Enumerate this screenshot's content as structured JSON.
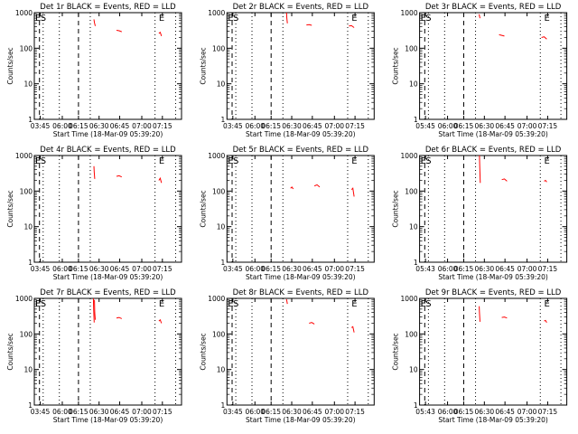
{
  "colors": {
    "events": "#000000",
    "lld": "#ff0000",
    "axis": "#000000"
  },
  "chart_data": [
    {
      "type": "line",
      "title": "Det 1r BLACK = Events, RED = LLD",
      "xlabel": "Start Time (18-Mar-09 05:39:20)",
      "ylabel": "Counts/sec",
      "y_scale": "log",
      "ylim": [
        1,
        1000
      ],
      "yticks": [
        "1",
        "10",
        "100",
        "1000"
      ],
      "xticks": [
        "03:45",
        "06:00",
        "06:15",
        "06:30",
        "06:45",
        "07:00",
        "07:15"
      ],
      "markers": [
        "E",
        "S",
        "E"
      ],
      "lld_segments": [
        {
          "x": [
            0.225,
            0.227,
            0.23
          ],
          "y": [
            650,
            520,
            420
          ]
        },
        {
          "x": [
            0.31,
            0.32,
            0.33
          ],
          "y": [
            320,
            310,
            290
          ]
        },
        {
          "x": [
            0.47,
            0.475,
            0.48
          ],
          "y": [
            260,
            280,
            220
          ]
        }
      ],
      "events_segments": []
    },
    {
      "type": "line",
      "title": "Det 2r BLACK = Events, RED = LLD",
      "xlabel": "Start Time (18-Mar-09 05:39:20)",
      "ylabel": "Counts/sec",
      "y_scale": "log",
      "ylim": [
        1,
        1000
      ],
      "yticks": [
        "1",
        "10",
        "100",
        "1000"
      ],
      "xticks": [
        "03:45",
        "06:00",
        "06:15",
        "06:30",
        "06:45",
        "07:00",
        "07:15"
      ],
      "markers": [
        "E",
        "S",
        "E"
      ],
      "lld_segments": [
        {
          "x": [
            0.225,
            0.226,
            0.228
          ],
          "y": [
            1000,
            700,
            500
          ]
        },
        {
          "x": [
            0.3,
            0.31,
            0.32
          ],
          "y": [
            450,
            460,
            440
          ]
        },
        {
          "x": [
            0.46,
            0.47,
            0.48
          ],
          "y": [
            420,
            430,
            380
          ]
        }
      ],
      "events_segments": []
    },
    {
      "type": "line",
      "title": "Det 3r BLACK = Events, RED = LLD",
      "xlabel": "Start Time (18-Mar-09 05:39:20)",
      "ylabel": "Counts/sec",
      "y_scale": "log",
      "ylim": [
        1,
        1000
      ],
      "yticks": [
        "1",
        "10",
        "100",
        "1000"
      ],
      "xticks": [
        "05:45",
        "06:00",
        "06:15",
        "06:30",
        "06:45",
        "07:00",
        "07:15"
      ],
      "markers": [
        "E",
        "S",
        "E"
      ],
      "lld_segments": [
        {
          "x": [
            0.225,
            0.226,
            0.228
          ],
          "y": [
            900,
            800,
            700
          ]
        },
        {
          "x": [
            0.3,
            0.31,
            0.32
          ],
          "y": [
            240,
            230,
            220
          ]
        },
        {
          "x": [
            0.46,
            0.47,
            0.48
          ],
          "y": [
            200,
            210,
            180
          ]
        }
      ],
      "events_segments": []
    },
    {
      "type": "line",
      "title": "Det 4r BLACK = Events, RED = LLD",
      "xlabel": "Start Time (18-Mar-09 05:39:20)",
      "ylabel": "Counts/sec",
      "y_scale": "log",
      "ylim": [
        1,
        1000
      ],
      "yticks": [
        "1",
        "10",
        "100",
        "1000"
      ],
      "xticks": [
        "03:45",
        "06:00",
        "06:15",
        "06:30",
        "06:45",
        "07:00",
        "07:15"
      ],
      "markers": [
        "E",
        "S",
        "E"
      ],
      "lld_segments": [
        {
          "x": [
            0.225,
            0.226,
            0.228
          ],
          "y": [
            500,
            350,
            220
          ]
        },
        {
          "x": [
            0.31,
            0.32,
            0.33
          ],
          "y": [
            260,
            270,
            250
          ]
        },
        {
          "x": [
            0.47,
            0.475,
            0.48
          ],
          "y": [
            200,
            230,
            170
          ]
        }
      ],
      "events_segments": []
    },
    {
      "type": "line",
      "title": "Det 5r BLACK = Events, RED = LLD",
      "xlabel": "Start Time (18-Mar-09 05:39:20)",
      "ylabel": "Counts/sec",
      "y_scale": "log",
      "ylim": [
        1,
        1000
      ],
      "yticks": [
        "1",
        "10",
        "100",
        "1000"
      ],
      "xticks": [
        "03:45",
        "06:00",
        "06:15",
        "06:30",
        "06:45",
        "07:00",
        "07:15"
      ],
      "markers": [
        "E",
        "S",
        "E"
      ],
      "lld_segments": [
        {
          "x": [
            0.24,
            0.245,
            0.25
          ],
          "y": [
            120,
            130,
            115
          ]
        },
        {
          "x": [
            0.33,
            0.34,
            0.35
          ],
          "y": [
            140,
            150,
            130
          ]
        },
        {
          "x": [
            0.47,
            0.475,
            0.48
          ],
          "y": [
            110,
            120,
            70
          ]
        }
      ],
      "events_segments": []
    },
    {
      "type": "line",
      "title": "Det 6r BLACK = Events, RED = LLD",
      "xlabel": "Start Time (18-Mar-09 05:39:20)",
      "ylabel": "Counts/sec",
      "y_scale": "log",
      "ylim": [
        1,
        1000
      ],
      "yticks": [
        "1",
        "10",
        "100",
        "1000"
      ],
      "xticks": [
        "05:43",
        "06:00",
        "06:15",
        "06:30",
        "06:45",
        "07:00",
        "07:15"
      ],
      "markers": [
        "E",
        "S",
        "E"
      ],
      "lld_segments": [
        {
          "x": [
            0.226,
            0.227,
            0.229
          ],
          "y": [
            1000,
            500,
            170
          ]
        },
        {
          "x": [
            0.31,
            0.32,
            0.33
          ],
          "y": [
            210,
            220,
            190
          ]
        },
        {
          "x": [
            0.47,
            0.475,
            0.48
          ],
          "y": [
            190,
            200,
            180
          ]
        }
      ],
      "events_segments": []
    },
    {
      "type": "line",
      "title": "Det 7r BLACK = Events, RED = LLD",
      "xlabel": "Start Time (18-Mar-09 05:39:20)",
      "ylabel": "Counts/sec",
      "y_scale": "log",
      "ylim": [
        1,
        1000
      ],
      "yticks": [
        "1",
        "10",
        "100",
        "1000"
      ],
      "xticks": [
        "03:45",
        "06:00",
        "06:15",
        "06:30",
        "06:45",
        "07:00",
        "07:15"
      ],
      "markers": [
        "E",
        "S",
        "E"
      ],
      "lld_segments": [
        {
          "x": [
            0.223,
            0.224,
            0.226
          ],
          "y": [
            1000,
            500,
            210
          ]
        },
        {
          "x": [
            0.227,
            0.228,
            0.23
          ],
          "y": [
            900,
            400,
            250
          ]
        },
        {
          "x": [
            0.31,
            0.32,
            0.33
          ],
          "y": [
            280,
            290,
            270
          ]
        },
        {
          "x": [
            0.47,
            0.475,
            0.48
          ],
          "y": [
            230,
            250,
            200
          ]
        }
      ],
      "events_segments": []
    },
    {
      "type": "line",
      "title": "Det 8r BLACK = Events, RED = LLD",
      "xlabel": "Start Time (18-Mar-09 05:39:20)",
      "ylabel": "Counts/sec",
      "y_scale": "log",
      "ylim": [
        1,
        1000
      ],
      "yticks": [
        "1",
        "10",
        "100",
        "1000"
      ],
      "xticks": [
        "03:45",
        "06:00",
        "06:15",
        "06:30",
        "06:45",
        "07:00",
        "07:15"
      ],
      "markers": [
        "E",
        "S",
        "E"
      ],
      "lld_segments": [
        {
          "x": [
            0.225,
            0.226,
            0.228
          ],
          "y": [
            950,
            850,
            700
          ]
        },
        {
          "x": [
            0.31,
            0.32,
            0.33
          ],
          "y": [
            200,
            210,
            190
          ]
        },
        {
          "x": [
            0.47,
            0.475,
            0.48
          ],
          "y": [
            150,
            160,
            110
          ]
        }
      ],
      "events_segments": []
    },
    {
      "type": "line",
      "title": "Det 9r BLACK = Events, RED = LLD",
      "xlabel": "Start Time (18-Mar-09 05:39:20)",
      "ylabel": "Counts/sec",
      "y_scale": "log",
      "ylim": [
        1,
        1000
      ],
      "yticks": [
        "1",
        "10",
        "100",
        "1000"
      ],
      "xticks": [
        "05:43",
        "06:00",
        "06:15",
        "06:30",
        "06:45",
        "07:00",
        "07:15"
      ],
      "markers": [
        "E",
        "S",
        "E"
      ],
      "lld_segments": [
        {
          "x": [
            0.225,
            0.226,
            0.228
          ],
          "y": [
            600,
            400,
            220
          ]
        },
        {
          "x": [
            0.31,
            0.32,
            0.33
          ],
          "y": [
            290,
            300,
            280
          ]
        },
        {
          "x": [
            0.47,
            0.475,
            0.48
          ],
          "y": [
            230,
            240,
            210
          ]
        }
      ],
      "events_segments": []
    }
  ]
}
